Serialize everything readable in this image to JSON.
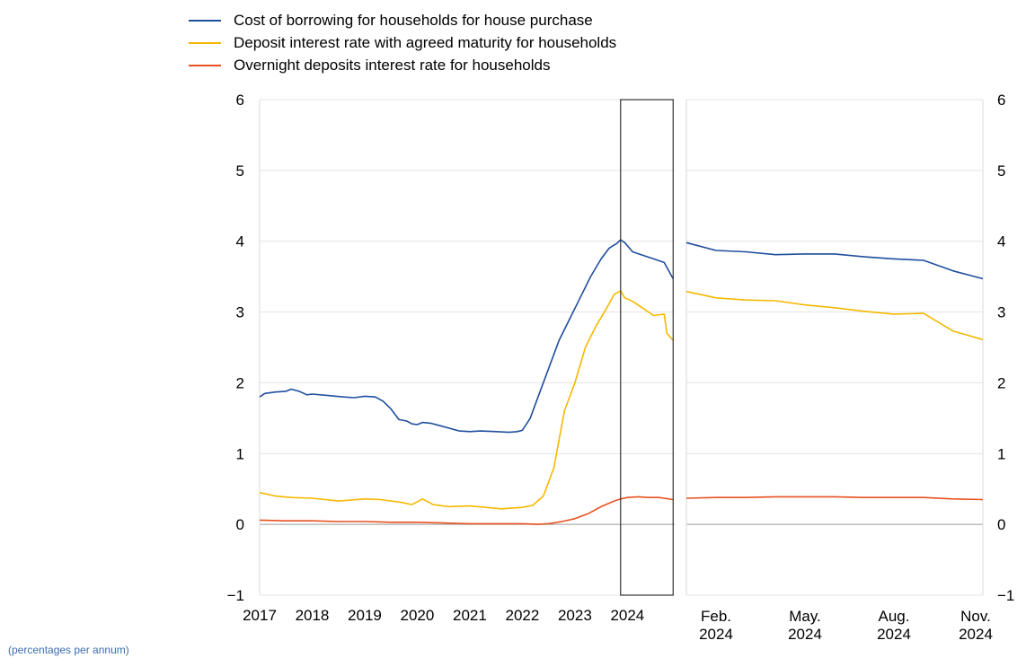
{
  "chart_data": {
    "type": "line",
    "legend_position": "top-left",
    "ylim": [
      -1,
      6
    ],
    "yticks": [
      -1,
      0,
      1,
      2,
      3,
      4,
      5,
      6
    ],
    "footnote": "(percentages per annum)",
    "colors": {
      "borrowing": "#1f4e9e",
      "deposit_agreed": "#f5b800",
      "overnight": "#e8511f",
      "box": "#333333"
    },
    "highlight": {
      "description": "year 2024 shown in detail in right panel",
      "x_range": [
        2023.87,
        2024.87
      ]
    },
    "left_panel": {
      "xlim": [
        2017,
        2024.9
      ],
      "x_tick_labels": [
        "2017",
        "2018",
        "2019",
        "2020",
        "2021",
        "2022",
        "2023",
        "2024"
      ],
      "x_tick_values": [
        2017,
        2018,
        2019,
        2020,
        2021,
        2022,
        2023,
        2024
      ],
      "series": [
        {
          "name": "Cost of borrowing for households for house purchase",
          "color_key": "borrowing",
          "x": [
            2017.0,
            2017.1,
            2017.3,
            2017.5,
            2017.6,
            2017.75,
            2017.9,
            2018.0,
            2018.3,
            2018.6,
            2018.8,
            2019.0,
            2019.2,
            2019.35,
            2019.5,
            2019.65,
            2019.8,
            2019.9,
            2020.0,
            2020.1,
            2020.25,
            2020.4,
            2020.6,
            2020.8,
            2021.0,
            2021.2,
            2021.5,
            2021.75,
            2021.9,
            2022.0,
            2022.15,
            2022.3,
            2022.5,
            2022.7,
            2022.9,
            2023.1,
            2023.3,
            2023.5,
            2023.65,
            2023.8,
            2023.87,
            2023.95,
            2024.1,
            2024.3,
            2024.5,
            2024.7,
            2024.87
          ],
          "y": [
            1.8,
            1.85,
            1.87,
            1.88,
            1.91,
            1.88,
            1.83,
            1.84,
            1.82,
            1.8,
            1.79,
            1.81,
            1.8,
            1.74,
            1.63,
            1.48,
            1.46,
            1.42,
            1.41,
            1.44,
            1.43,
            1.4,
            1.36,
            1.32,
            1.31,
            1.32,
            1.31,
            1.3,
            1.31,
            1.33,
            1.5,
            1.8,
            2.2,
            2.6,
            2.9,
            3.2,
            3.5,
            3.75,
            3.9,
            3.97,
            4.02,
            3.98,
            3.85,
            3.8,
            3.75,
            3.7,
            3.47
          ]
        },
        {
          "name": "Deposit interest rate with agreed maturity for households",
          "color_key": "deposit_agreed",
          "x": [
            2017.0,
            2017.3,
            2017.6,
            2018.0,
            2018.5,
            2019.0,
            2019.3,
            2019.7,
            2019.9,
            2020.1,
            2020.3,
            2020.6,
            2021.0,
            2021.3,
            2021.6,
            2022.0,
            2022.2,
            2022.4,
            2022.6,
            2022.8,
            2023.0,
            2023.2,
            2023.4,
            2023.6,
            2023.75,
            2023.87,
            2023.95,
            2024.1,
            2024.3,
            2024.5,
            2024.7,
            2024.75,
            2024.87
          ],
          "y": [
            0.45,
            0.4,
            0.38,
            0.37,
            0.33,
            0.36,
            0.35,
            0.31,
            0.28,
            0.36,
            0.28,
            0.25,
            0.26,
            0.24,
            0.22,
            0.24,
            0.27,
            0.4,
            0.8,
            1.6,
            2.0,
            2.5,
            2.8,
            3.05,
            3.25,
            3.3,
            3.2,
            3.15,
            3.05,
            2.95,
            2.97,
            2.7,
            2.6
          ]
        },
        {
          "name": "Overnight deposits interest rate for households",
          "color_key": "overnight",
          "x": [
            2017.0,
            2017.5,
            2018.0,
            2018.5,
            2019.0,
            2019.5,
            2020.0,
            2020.5,
            2021.0,
            2021.5,
            2022.0,
            2022.3,
            2022.5,
            2022.75,
            2023.0,
            2023.25,
            2023.5,
            2023.75,
            2023.87,
            2024.0,
            2024.2,
            2024.4,
            2024.6,
            2024.87
          ],
          "y": [
            0.06,
            0.05,
            0.05,
            0.04,
            0.04,
            0.03,
            0.03,
            0.02,
            0.01,
            0.01,
            0.01,
            0.0,
            0.01,
            0.04,
            0.08,
            0.15,
            0.25,
            0.33,
            0.36,
            0.38,
            0.39,
            0.38,
            0.38,
            0.35
          ]
        }
      ]
    },
    "right_panel": {
      "xlim": [
        0,
        10
      ],
      "x_tick_labels": [
        [
          "Feb.",
          "2024"
        ],
        [
          "May.",
          "2024"
        ],
        [
          "Aug.",
          "2024"
        ],
        [
          "Nov.",
          "2024"
        ]
      ],
      "x_tick_values": [
        1,
        4,
        7,
        10
      ],
      "series": [
        {
          "name": "Cost of borrowing for households for house purchase",
          "color_key": "borrowing",
          "x": [
            0,
            1,
            2,
            3,
            4,
            5,
            6,
            7,
            8,
            9,
            10
          ],
          "y": [
            3.98,
            3.87,
            3.85,
            3.81,
            3.82,
            3.82,
            3.78,
            3.75,
            3.73,
            3.58,
            3.47
          ]
        },
        {
          "name": "Deposit interest rate with agreed maturity for households",
          "color_key": "deposit_agreed",
          "x": [
            0,
            1,
            2,
            3,
            4,
            5,
            6,
            7,
            8,
            9,
            10
          ],
          "y": [
            3.29,
            3.2,
            3.17,
            3.16,
            3.1,
            3.06,
            3.01,
            2.97,
            2.98,
            2.73,
            2.61
          ]
        },
        {
          "name": "Overnight deposits interest rate for households",
          "color_key": "overnight",
          "x": [
            0,
            1,
            2,
            3,
            4,
            5,
            6,
            7,
            8,
            9,
            10
          ],
          "y": [
            0.37,
            0.38,
            0.38,
            0.39,
            0.39,
            0.39,
            0.38,
            0.38,
            0.38,
            0.36,
            0.35
          ]
        }
      ]
    }
  }
}
